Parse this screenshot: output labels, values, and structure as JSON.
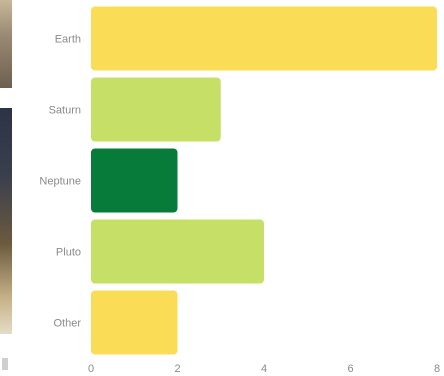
{
  "chart_data": {
    "type": "bar",
    "orientation": "horizontal",
    "categories": [
      "Earth",
      "Saturn",
      "Neptune",
      "Pluto",
      "Other"
    ],
    "values": [
      8,
      3,
      2,
      4,
      2
    ],
    "colors": [
      "#fbdc56",
      "#c6e067",
      "#077c3a",
      "#c6e067",
      "#fbdc56"
    ],
    "xlim": [
      0,
      8
    ],
    "xticks": [
      0,
      2,
      4,
      6,
      8
    ],
    "grid": false,
    "title": "",
    "xlabel": "",
    "ylabel": ""
  },
  "colors": {
    "tick_label": "#8a8a8a",
    "axis_line": "#d9d9d9"
  }
}
